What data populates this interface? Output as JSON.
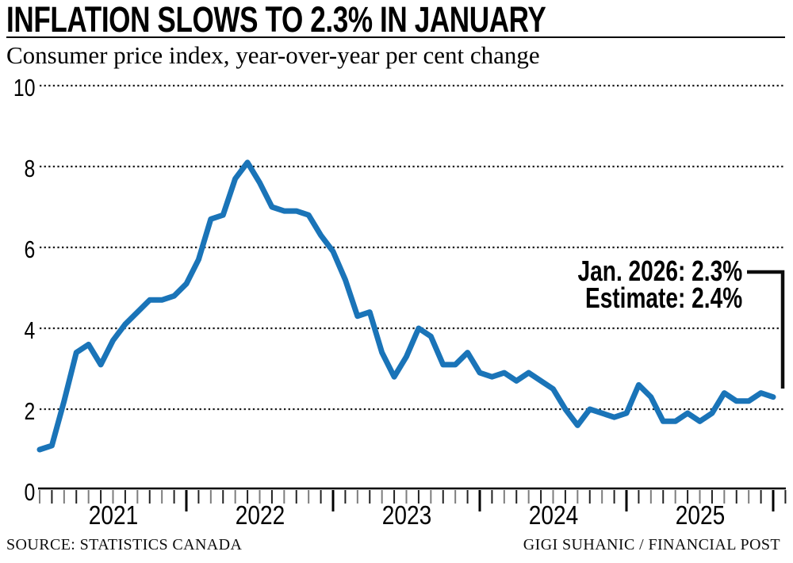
{
  "header": {
    "title": "INFLATION SLOWS TO 2.3% IN JANUARY",
    "subtitle": "Consumer price index, year-over-year per cent change"
  },
  "annotation": {
    "line1": "Jan. 2026: 2.3%",
    "line2": "Estimate: 2.4%"
  },
  "footer": {
    "source": "SOURCE: STATISTICS CANADA",
    "credit": "GIGI SUHANIC / FINANCIAL POST"
  },
  "chart_data": {
    "type": "line",
    "title": "INFLATION SLOWS TO 2.3% IN JANUARY",
    "subtitle": "Consumer price index, year-over-year per cent change",
    "x_start": "2021-01",
    "x_end": "2026-01",
    "frequency": "monthly",
    "year_labels": [
      "2021",
      "2022",
      "2023",
      "2024",
      "2025"
    ],
    "y_ticks": [
      0,
      2,
      4,
      6,
      8,
      10
    ],
    "ylim": [
      0,
      10
    ],
    "grid": "horizontal-dotted",
    "line_color": "#1a74b8",
    "series": [
      {
        "name": "CPI year-over-year per cent change",
        "values": [
          1.0,
          1.1,
          2.2,
          3.4,
          3.6,
          3.1,
          3.7,
          4.1,
          4.4,
          4.7,
          4.7,
          4.8,
          5.1,
          5.7,
          6.7,
          6.8,
          7.7,
          8.1,
          7.6,
          7.0,
          6.9,
          6.9,
          6.8,
          6.3,
          5.9,
          5.2,
          4.3,
          4.4,
          3.4,
          2.8,
          3.3,
          4.0,
          3.8,
          3.1,
          3.1,
          3.4,
          2.9,
          2.8,
          2.9,
          2.7,
          2.9,
          2.7,
          2.5,
          2.0,
          1.6,
          2.0,
          1.9,
          1.8,
          1.9,
          2.6,
          2.3,
          1.7,
          1.7,
          1.9,
          1.7,
          1.9,
          2.4,
          2.2,
          2.2,
          2.4,
          2.3
        ]
      }
    ],
    "last_point_label": "Jan. 2026: 2.3%",
    "estimate_label": "Estimate: 2.4%"
  }
}
